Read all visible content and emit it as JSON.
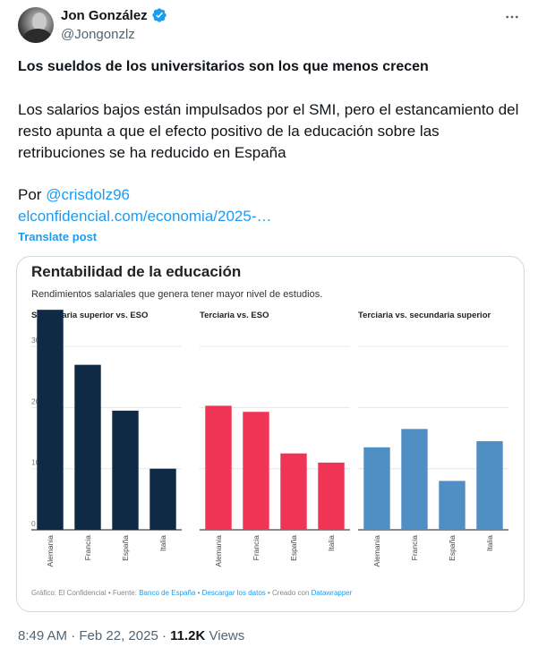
{
  "author": {
    "name": "Jon González",
    "handle": "@Jongonzlz",
    "avatar_icon": "avatar-photo",
    "verified_icon": "verified-badge-icon",
    "verified_color": "#1d9bf0"
  },
  "tweet": {
    "headline": "Los sueldos de los universitarios son los que menos crecen",
    "body": "Los salarios bajos están impulsados por el SMI, pero el estancamiento del resto apunta a que el efecto positivo de la educación sobre las retribuciones se ha reducido en España",
    "by_prefix": "Por ",
    "mention": "@crisdolz96",
    "link": "elconfidencial.com/economia/2025-…",
    "translate_label": "Translate post",
    "time": "8:49 AM",
    "date": "Feb 22, 2025",
    "separator": "·",
    "views_count": "11.2K",
    "views_label": "Views"
  },
  "chart_data": {
    "type": "bar",
    "title": "Rentabilidad de la educación",
    "subtitle": "Rendimientos salariales que genera tener mayor nivel de estudios.",
    "ylim": [
      0,
      35
    ],
    "yticks": [
      0,
      10,
      20,
      30
    ],
    "categories": [
      "Alemania",
      "Francia",
      "España",
      "Italia"
    ],
    "panels": [
      {
        "name": "Secundaria superior vs. ESO",
        "color": "#0f2a44",
        "values": [
          36,
          27,
          19.5,
          10
        ]
      },
      {
        "name": "Terciaria vs. ESO",
        "color": "#ef3456",
        "values": [
          20.3,
          19.3,
          12.5,
          11
        ]
      },
      {
        "name": "Terciaria vs. secundaria superior",
        "color": "#4f8fc4",
        "values": [
          13.5,
          16.5,
          8,
          14.5
        ]
      }
    ],
    "footer": {
      "prefix": "Gráfico: El Confidencial • Fuente: ",
      "source": "Banco de España",
      "sep1": " • ",
      "download": "Descargar los datos",
      "sep2": " • Creado con ",
      "tool": "Datawrapper"
    },
    "link_color": "#1d9bf0",
    "grid": true
  }
}
